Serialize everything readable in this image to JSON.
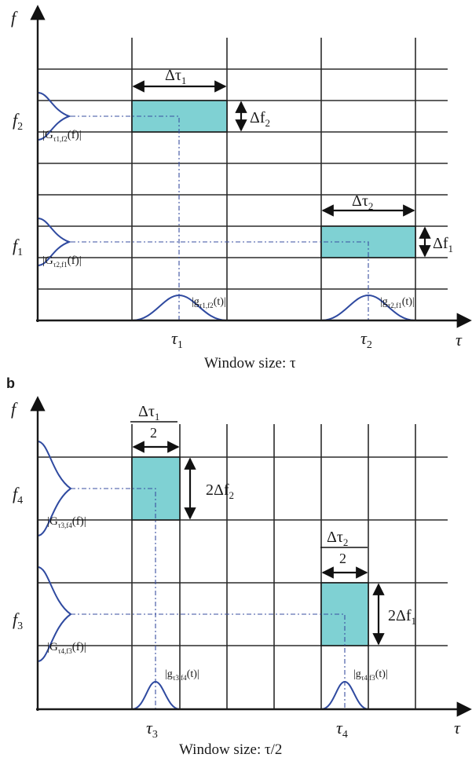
{
  "panel_a": {
    "f_axis": "f",
    "tau_axis": "τ",
    "f2": "f",
    "f2_sub": "2",
    "f1": "f",
    "f1_sub": "1",
    "tau1": "τ",
    "tau1_sub": "1",
    "tau2": "τ",
    "tau2_sub": "2",
    "dtau1": "Δτ",
    "dtau1_sub": "1",
    "dtau2": "Δτ",
    "dtau2_sub": "2",
    "df2": "Δf",
    "df2_sub": "2",
    "df1": "Δf",
    "df1_sub": "1",
    "G_top": "|G",
    "G_top_sub": "τ1,f2",
    "G_top_tail": "(f)|",
    "G_bot": "|G",
    "G_bot_sub": "τ2,f1",
    "G_bot_tail": "(f)|",
    "g_left": "|g",
    "g_left_sub": "τ1,f2",
    "g_left_tail": "(t)|",
    "g_right": "|g",
    "g_right_sub": "τ2,f1",
    "g_right_tail": "(t)|",
    "window": "Window size: τ"
  },
  "panel_b": {
    "label": "b",
    "f_axis": "f",
    "tau_axis": "τ",
    "f4": "f",
    "f4_sub": "4",
    "f3": "f",
    "f3_sub": "3",
    "tau3": "τ",
    "tau3_sub": "3",
    "tau4": "τ",
    "tau4_sub": "4",
    "dtau1": "Δτ",
    "dtau1_sub": "1",
    "dtau1_den": "2",
    "dtau2": "Δτ",
    "dtau2_sub": "2",
    "dtau2_den": "2",
    "df2": "2Δf",
    "df2_sub": "2",
    "df1": "2Δf",
    "df1_sub": "1",
    "G_top": "|G",
    "G_top_sub": "τ3,f4",
    "G_top_tail": "(f)|",
    "G_bot": "|G",
    "G_bot_sub": "τ4,f3",
    "G_bot_tail": "(f)|",
    "g_left": "|g",
    "g_left_sub": "τ3,f4",
    "g_left_tail": "(t)|",
    "g_right": "|g",
    "g_right_sub": "τ4,f3",
    "g_right_tail": "(t)|",
    "window": "Window size: τ/2"
  },
  "colors": {
    "box_fill": "#7fd1d3",
    "curve": "#2f4aa0",
    "dash": "#3a4fa0"
  }
}
